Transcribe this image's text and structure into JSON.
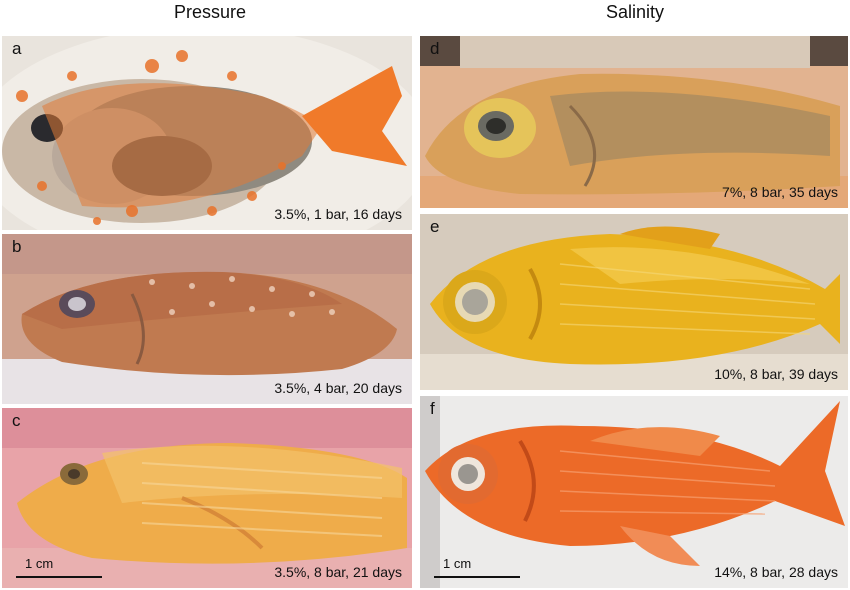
{
  "headers": {
    "left": "Pressure",
    "right": "Salinity"
  },
  "panels": [
    {
      "label": "a",
      "caption": "3.5%, 1 bar, 16 days"
    },
    {
      "label": "b",
      "caption": "3.5%, 4 bar, 20 days"
    },
    {
      "label": "c",
      "caption": "3.5%, 8 bar, 21 days",
      "scale": "1 cm"
    },
    {
      "label": "d",
      "caption": "7%, 8 bar, 35 days"
    },
    {
      "label": "e",
      "caption": "10%, 8 bar, 39 days"
    },
    {
      "label": "f",
      "caption": "14%, 8 bar, 28 days",
      "scale": "1 cm"
    }
  ]
}
